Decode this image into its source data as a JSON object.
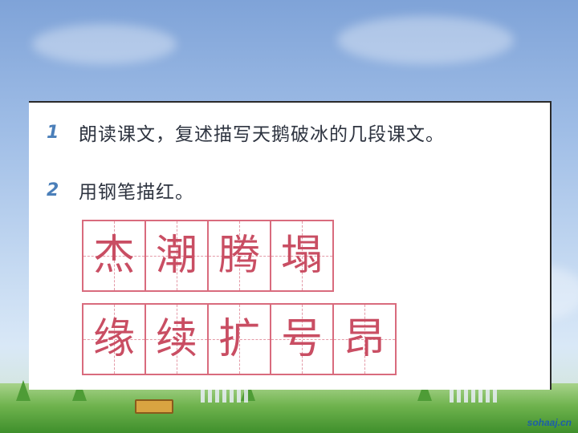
{
  "background": {
    "sky_color": "#9fbde6",
    "grass_color": "#4e9c36"
  },
  "watermark": "sohaaj.cn",
  "exercise": {
    "items": [
      {
        "number": "1",
        "text": "朗读课文，复述描写天鹅破冰的几段课文。"
      },
      {
        "number": "2",
        "text": "用钢笔描红。"
      }
    ],
    "grid_row_1": [
      "杰",
      "潮",
      "腾",
      "塌"
    ],
    "grid_row_2": [
      "缘",
      "续",
      "扩",
      "号",
      "昂"
    ]
  },
  "colors": {
    "number_blue": "#4b7fb9",
    "grid_red": "#d96b7d",
    "char_red": "#c94e63"
  }
}
